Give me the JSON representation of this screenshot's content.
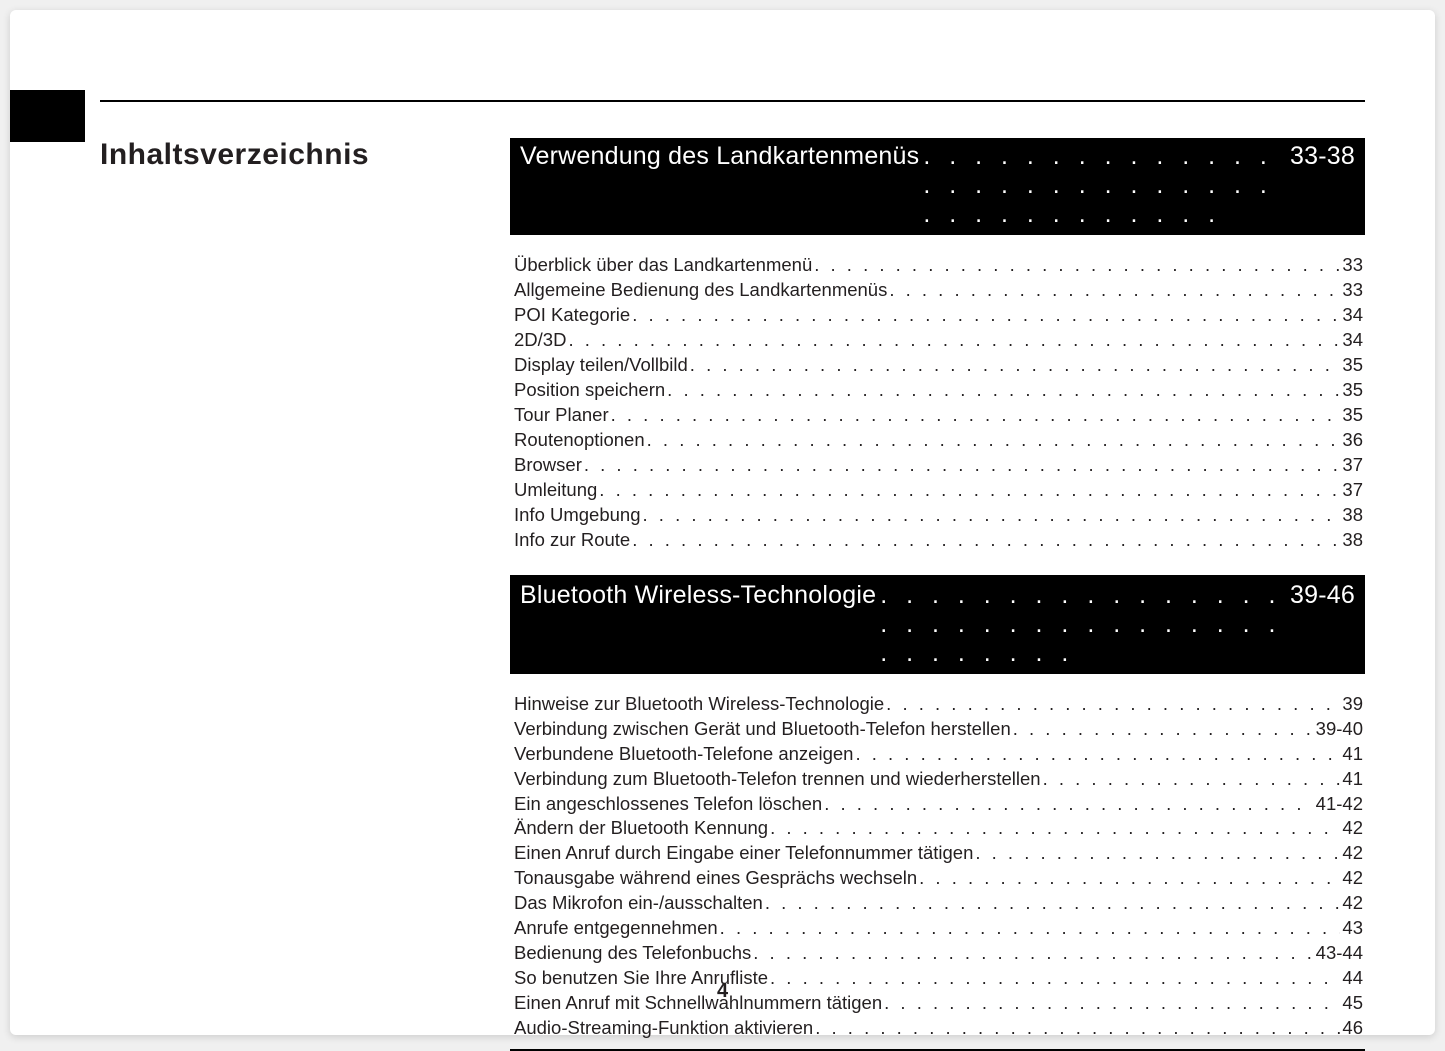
{
  "page": {
    "title": "Inhaltsverzeichnis",
    "pageNumber": "4",
    "colors": {
      "background": "#ffffff",
      "text": "#231f20",
      "headerBg": "#000000",
      "headerFg": "#ffffff"
    }
  },
  "sections": [
    {
      "title": "Verwendung des Landkartenmenüs",
      "pageRange": "33-38",
      "entries": [
        {
          "label": "Überblick über das Landkartenmenü",
          "page": "33"
        },
        {
          "label": "Allgemeine Bedienung des Landkartenmenüs",
          "page": "33"
        },
        {
          "label": "POI Kategorie",
          "page": "34"
        },
        {
          "label": "2D/3D",
          "page": "34"
        },
        {
          "label": "Display teilen/Vollbild",
          "page": "35"
        },
        {
          "label": "Position speichern",
          "page": "35"
        },
        {
          "label": "Tour Planer",
          "page": "35"
        },
        {
          "label": "Routenoptionen",
          "page": "36"
        },
        {
          "label": "Browser",
          "page": "37"
        },
        {
          "label": "Umleitung",
          "page": "37"
        },
        {
          "label": "Info Umgebung",
          "page": "38"
        },
        {
          "label": "Info zur Route",
          "page": "38"
        }
      ]
    },
    {
      "title": "Bluetooth Wireless-Technologie",
      "pageRange": "39-46",
      "entries": [
        {
          "label": "Hinweise zur Bluetooth Wireless-Technologie",
          "page": "39"
        },
        {
          "label": "Verbindung zwischen Gerät und Bluetooth-Telefon herstellen",
          "page": "39-40"
        },
        {
          "label": "Verbundene Bluetooth-Telefone anzeigen",
          "page": "41"
        },
        {
          "label": "Verbindung zum Bluetooth-Telefon trennen und wiederherstellen",
          "page": "41"
        },
        {
          "label": "Ein angeschlossenes Telefon löschen",
          "page": "41-42"
        },
        {
          "label": "Ändern der Bluetooth Kennung",
          "page": "42"
        },
        {
          "label": "Einen Anruf durch Eingabe einer Telefonnummer tätigen",
          "page": "42"
        },
        {
          "label": "Tonausgabe während eines Gesprächs wechseln",
          "page": "42"
        },
        {
          "label": "Das Mikrofon ein-/ausschalten",
          "page": "42"
        },
        {
          "label": "Anrufe entgegennehmen",
          "page": "43"
        },
        {
          "label": "Bedienung des Telefonbuchs",
          "page": "43-44"
        },
        {
          "label": "So benutzen Sie Ihre Anrufliste",
          "page": "44"
        },
        {
          "label": "Einen Anruf mit Schnellwahlnummern tätigen",
          "page": "45"
        },
        {
          "label": "Audio-Streaming-Funktion aktivieren",
          "page": "46"
        }
      ]
    }
  ]
}
